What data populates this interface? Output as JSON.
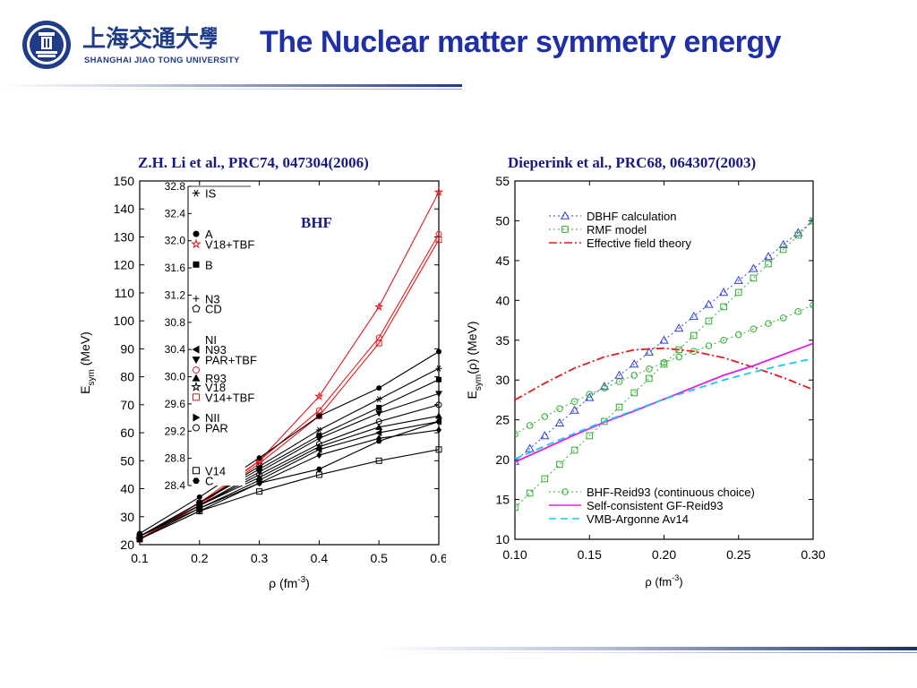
{
  "header": {
    "logo_cn": "上海交通大學",
    "logo_en": "SHANGHAI  JIAO TONG  UNIVERSITY",
    "title": "The Nuclear matter symmetry energy"
  },
  "references": {
    "left": "Z.H. Li et al., PRC74, 047304(2006)",
    "right": "Dieperink et al., PRC68, 064307(2003)"
  },
  "colors": {
    "title": "#1f2fa6",
    "ref": "#1a1a80",
    "red": "#e41a1c",
    "magenta": "#e020e0",
    "cyan": "#18c8f0",
    "blue": "#3040e0",
    "green": "#30b030"
  },
  "chart_data": [
    {
      "type": "line",
      "annotation": "BHF",
      "xlabel": "ρ (fm",
      "xlabel_sup": "-3",
      "xlabel_end": ")",
      "ylabel": "E",
      "ylabel_sub": "sym",
      "ylabel_end": " (MeV)",
      "xlim": [
        0.1,
        0.6
      ],
      "ylim": [
        20,
        150
      ],
      "x_ticks": [
        "0.1",
        "0.2",
        "0.3",
        "0.4",
        "0.5",
        "0.6"
      ],
      "y_ticks": [
        "20",
        "30",
        "40",
        "50",
        "60",
        "70",
        "80",
        "90",
        "100",
        "110",
        "120",
        "130",
        "140",
        "150"
      ],
      "x": [
        0.1,
        0.2,
        0.3,
        0.4,
        0.5,
        0.6
      ],
      "series": [
        {
          "color": "red",
          "marker": "star",
          "values": [
            22,
            35,
            50,
            73,
            105,
            146
          ]
        },
        {
          "color": "red",
          "marker": "circle-open",
          "values": [
            22,
            34,
            50,
            68,
            94,
            131
          ]
        },
        {
          "color": "red",
          "marker": "square-open",
          "values": [
            22,
            34,
            49,
            66,
            92,
            129
          ]
        },
        {
          "color": "black",
          "marker": "circle",
          "values": [
            24,
            37,
            51,
            66,
            76,
            89
          ]
        },
        {
          "color": "black",
          "marker": "star6",
          "values": [
            23,
            35,
            48,
            61,
            72,
            83
          ]
        },
        {
          "color": "black",
          "marker": "square",
          "values": [
            23,
            35,
            47,
            59,
            69,
            79
          ]
        },
        {
          "color": "black",
          "marker": "tri-down",
          "values": [
            23,
            34,
            46,
            58,
            67,
            74
          ]
        },
        {
          "color": "black",
          "marker": "circle-open",
          "values": [
            23,
            34,
            45,
            56,
            64,
            70
          ]
        },
        {
          "color": "black",
          "marker": "tri-up",
          "values": [
            23,
            34,
            44,
            55,
            62,
            66
          ]
        },
        {
          "color": "black",
          "marker": "tri-left",
          "values": [
            23,
            33,
            43,
            54,
            60,
            64
          ]
        },
        {
          "color": "black",
          "marker": "diamond",
          "values": [
            22,
            32,
            42,
            52,
            58,
            61
          ]
        },
        {
          "color": "black",
          "marker": "hexagon",
          "values": [
            22,
            33,
            42,
            47,
            57,
            64
          ]
        },
        {
          "color": "black",
          "marker": "square-open",
          "values": [
            22,
            32,
            39,
            45,
            50,
            54
          ]
        }
      ],
      "inset": {
        "ylim": [
          28.4,
          32.8
        ],
        "y_ticks": [
          "32.8",
          "32.4",
          "32.0",
          "31.6",
          "31.2",
          "30.8",
          "30.4",
          "30.0",
          "29.6",
          "29.2",
          "28.8",
          "28.4"
        ],
        "legend": [
          {
            "label": "IS",
            "marker": "star6",
            "color": "black",
            "y": 32.7
          },
          {
            "label": "A",
            "marker": "circle",
            "color": "black",
            "y": 32.1
          },
          {
            "label": "V18+TBF",
            "marker": "star",
            "color": "red",
            "y": 31.95
          },
          {
            "label": "B",
            "marker": "square",
            "color": "black",
            "y": 31.65
          },
          {
            "label": "N3",
            "marker": "plus",
            "color": "black",
            "y": 31.15
          },
          {
            "label": "CD",
            "marker": "pentagon-open",
            "color": "black",
            "y": 31.0
          },
          {
            "label": "NI",
            "marker": "",
            "color": "black",
            "y": 30.55
          },
          {
            "label": "N93",
            "marker": "tri-left",
            "color": "black",
            "y": 30.4
          },
          {
            "label": "PAR+TBF",
            "marker": "tri-down",
            "color": "black",
            "y": 30.25
          },
          {
            "label": "",
            "marker": "circle-open",
            "color": "red",
            "y": 30.1
          },
          {
            "label": "R93",
            "marker": "tri-up",
            "color": "black",
            "y": 29.98
          },
          {
            "label": "V18",
            "marker": "star",
            "color": "black",
            "y": 29.85
          },
          {
            "label": "V14+TBF",
            "marker": "square-open",
            "color": "red",
            "y": 29.7
          },
          {
            "label": "NII",
            "marker": "tri-right",
            "color": "black",
            "y": 29.4
          },
          {
            "label": "PAR",
            "marker": "circle-open",
            "color": "black",
            "y": 29.25
          },
          {
            "label": "V14",
            "marker": "square-open",
            "color": "black",
            "y": 28.62
          },
          {
            "label": "C",
            "marker": "hexagon",
            "color": "black",
            "y": 28.47
          }
        ]
      }
    },
    {
      "type": "line",
      "xlabel": "ρ (fm",
      "xlabel_sup": "-3",
      "xlabel_end": ")",
      "ylabel": "E",
      "ylabel_sub": "sym",
      "ylabel_end": "(ρ) (MeV)",
      "xlim": [
        0.1,
        0.3
      ],
      "ylim": [
        10,
        55
      ],
      "x_ticks": [
        "0.10",
        "0.15",
        "0.20",
        "0.25",
        "0.30"
      ],
      "y_ticks": [
        "10",
        "15",
        "20",
        "25",
        "30",
        "35",
        "40",
        "45",
        "50",
        "55"
      ],
      "legend_top": [
        {
          "label": "DBHF calculation",
          "style": "dotted-triangle",
          "color": "blue"
        },
        {
          "label": "RMF model",
          "style": "dotted-square",
          "color": "green"
        },
        {
          "label": "Effective field theory",
          "style": "dashdot",
          "color": "red"
        }
      ],
      "legend_bottom": [
        {
          "label": "BHF-Reid93 (continuous choice)",
          "style": "dotted-circle",
          "color": "green"
        },
        {
          "label": "Self-consistent GF-Reid93",
          "style": "solid",
          "color": "magenta"
        },
        {
          "label": "VMB-Argonne Av14",
          "style": "dashed",
          "color": "cyan"
        }
      ],
      "series": [
        {
          "name": "DBHF calculation",
          "color": "blue",
          "dash": "2,3",
          "marker": "tri-open",
          "x": [
            0.1,
            0.11,
            0.12,
            0.13,
            0.14,
            0.15,
            0.16,
            0.17,
            0.18,
            0.19,
            0.2,
            0.21,
            0.22,
            0.23,
            0.24,
            0.25,
            0.26,
            0.27,
            0.28,
            0.29,
            0.3
          ],
          "y": [
            19.8,
            21.4,
            23.0,
            24.6,
            26.2,
            27.8,
            29.2,
            30.6,
            32.0,
            33.5,
            35.0,
            36.5,
            38.0,
            39.5,
            41.0,
            42.5,
            44.0,
            45.5,
            47.0,
            48.5,
            50.0
          ]
        },
        {
          "name": "RMF model",
          "color": "green",
          "dash": "2,3",
          "marker": "square-open",
          "x": [
            0.1,
            0.11,
            0.12,
            0.13,
            0.14,
            0.15,
            0.16,
            0.17,
            0.18,
            0.19,
            0.2,
            0.21,
            0.22,
            0.23,
            0.24,
            0.25,
            0.26,
            0.27,
            0.28,
            0.29,
            0.3
          ],
          "y": [
            14.0,
            15.8,
            17.6,
            19.4,
            21.2,
            23.0,
            24.8,
            26.6,
            28.4,
            30.2,
            32.0,
            33.8,
            35.6,
            37.4,
            39.2,
            41.0,
            42.8,
            44.6,
            46.4,
            48.2,
            50.0
          ]
        },
        {
          "name": "BHF-Reid93 (continuous choice)",
          "color": "green",
          "dash": "2,3",
          "marker": "circle-open",
          "x": [
            0.1,
            0.11,
            0.12,
            0.13,
            0.14,
            0.15,
            0.16,
            0.17,
            0.18,
            0.19,
            0.2,
            0.21,
            0.22,
            0.23,
            0.24,
            0.25,
            0.26,
            0.27,
            0.28,
            0.29,
            0.3
          ],
          "y": [
            23.2,
            24.3,
            25.4,
            26.4,
            27.3,
            28.2,
            29.0,
            29.8,
            30.6,
            31.4,
            32.2,
            32.9,
            33.6,
            34.3,
            35.0,
            35.7,
            36.4,
            37.1,
            37.8,
            38.6,
            39.4
          ]
        },
        {
          "name": "Effective field theory",
          "color": "red",
          "dash": "9,3,2,3",
          "marker": "",
          "x": [
            0.1,
            0.12,
            0.14,
            0.16,
            0.18,
            0.2,
            0.22,
            0.24,
            0.26,
            0.28,
            0.3
          ],
          "y": [
            27.5,
            29.6,
            31.5,
            32.9,
            33.8,
            34.0,
            33.6,
            32.8,
            31.6,
            30.3,
            28.8
          ]
        },
        {
          "name": "Self-consistent GF-Reid93",
          "color": "magenta",
          "dash": "",
          "marker": "",
          "x": [
            0.1,
            0.12,
            0.14,
            0.16,
            0.18,
            0.2,
            0.22,
            0.24,
            0.26,
            0.28,
            0.3
          ],
          "y": [
            19.7,
            21.4,
            23.1,
            24.7,
            26.1,
            27.6,
            29.1,
            30.6,
            31.8,
            33.2,
            34.6
          ]
        },
        {
          "name": "VMB-Argonne Av14",
          "color": "cyan",
          "dash": "8,5",
          "marker": "",
          "x": [
            0.1,
            0.12,
            0.14,
            0.16,
            0.18,
            0.2,
            0.22,
            0.24,
            0.26,
            0.28,
            0.3
          ],
          "y": [
            20.1,
            21.7,
            23.3,
            24.8,
            26.2,
            27.6,
            28.8,
            30.0,
            31.0,
            31.9,
            32.7
          ]
        }
      ]
    }
  ]
}
